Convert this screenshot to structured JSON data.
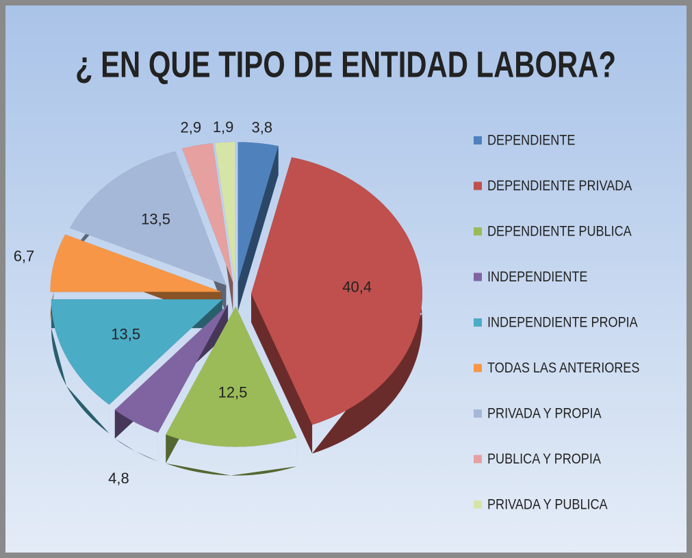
{
  "chart_data": {
    "type": "pie3d",
    "title": "¿ EN QUE TIPO DE ENTIDAD LABORA?",
    "categories": [
      "DEPENDIENTE",
      "DEPENDIENTE PRIVADA",
      "DEPENDIENTE PUBLICA",
      "INDEPENDIENTE",
      "INDEPENDIENTE PROPIA",
      "TODAS LAS ANTERIORES",
      "PRIVADA  Y PROPIA",
      "PUBLICA Y PROPIA",
      "PRIVADA Y PUBLICA"
    ],
    "values": [
      3.8,
      40.4,
      12.5,
      4.8,
      13.5,
      6.7,
      13.5,
      2.9,
      1.9
    ],
    "value_labels": [
      "3,8",
      "40,4",
      "12,5",
      "4,8",
      "13,5",
      "6,7",
      "13,5",
      "2,9",
      "1,9"
    ],
    "colors": [
      "#4f81bd",
      "#c0504d",
      "#9bbb59",
      "#8064a2",
      "#4bacc6",
      "#f79646",
      "#a5b8d8",
      "#e6a0a0",
      "#d7e4a8"
    ],
    "legend": "right"
  }
}
